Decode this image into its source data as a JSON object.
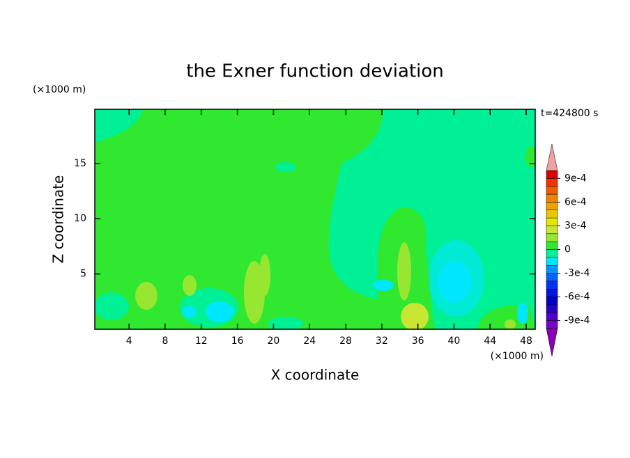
{
  "chart_data": {
    "type": "contour",
    "title": "the Exner function deviation",
    "x_label": "X coordinate",
    "y_label": "Z coordinate",
    "x_unit": "(×1000 m)",
    "y_unit": "(×1000 m)",
    "annotation": "t=424800 s",
    "xlim": [
      0.2,
      49
    ],
    "xticks": [
      4,
      8,
      12,
      16,
      20,
      24,
      28,
      32,
      36,
      40,
      44,
      48
    ],
    "ylim": [
      0,
      19.9
    ],
    "yticks": [
      5,
      10,
      15
    ],
    "colorbar": {
      "lim": [
        -0.001,
        0.001
      ],
      "ticks": [
        {
          "value": 0.0009,
          "label": "9e-4"
        },
        {
          "value": 0.0006,
          "label": "6e-4"
        },
        {
          "value": 0.0003,
          "label": "3e-4"
        },
        0,
        {
          "value": -0.0003,
          "label": "-3e-4"
        },
        {
          "value": -0.0006,
          "label": "-6e-4"
        },
        {
          "value": -0.0009,
          "label": "-9e-4"
        }
      ],
      "colors": [
        "#7800c8",
        "#5000c8",
        "#2800c8",
        "#0000c8",
        "#0014dc",
        "#0032f0",
        "#0064ff",
        "#0096ff",
        "#00e6ff",
        "#00f096",
        "#30e830",
        "#96e632",
        "#c8e632",
        "#e6e600",
        "#e6c800",
        "#f0a000",
        "#f08200",
        "#f05a00",
        "#f03200",
        "#dc0000"
      ],
      "under_color": "#8c00b4",
      "over_color": "#f0a0a0"
    }
  }
}
